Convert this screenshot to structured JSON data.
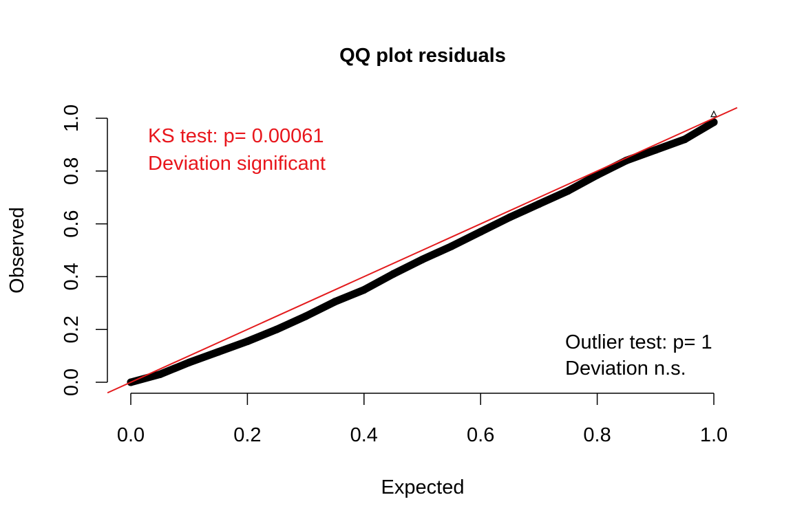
{
  "chart_data": {
    "type": "scatter",
    "title": "QQ plot residuals",
    "xlabel": "Expected",
    "ylabel": "Observed",
    "xlim": [
      0,
      1
    ],
    "ylim": [
      0,
      1
    ],
    "xticks": [
      "0.0",
      "0.2",
      "0.4",
      "0.6",
      "0.8",
      "1.0"
    ],
    "yticks": [
      "0.0",
      "0.2",
      "0.4",
      "0.6",
      "0.8",
      "1.0"
    ],
    "grid": false,
    "reference_line": {
      "slope": 1,
      "intercept": 0,
      "color": "#e31a1c"
    },
    "series": [
      {
        "x": [
          0.0,
          0.05,
          0.1,
          0.15,
          0.2,
          0.25,
          0.3,
          0.35,
          0.4,
          0.45,
          0.5,
          0.55,
          0.6,
          0.65,
          0.7,
          0.75,
          0.8,
          0.85,
          0.9,
          0.95,
          1.0
        ],
        "y": [
          0.0,
          0.03,
          0.075,
          0.115,
          0.155,
          0.2,
          0.25,
          0.305,
          0.35,
          0.41,
          0.465,
          0.515,
          0.57,
          0.625,
          0.675,
          0.725,
          0.785,
          0.84,
          0.88,
          0.92,
          0.985
        ],
        "color": "#000000"
      }
    ],
    "annotations": {
      "ks_line1": "KS test: p= 0.00061",
      "ks_line2": "Deviation  significant",
      "outlier_line1": "Outlier test: p= 1",
      "outlier_line2": "Deviation  n.s.",
      "ks_color": "#e8161c",
      "outlier_color": "#000000"
    }
  }
}
